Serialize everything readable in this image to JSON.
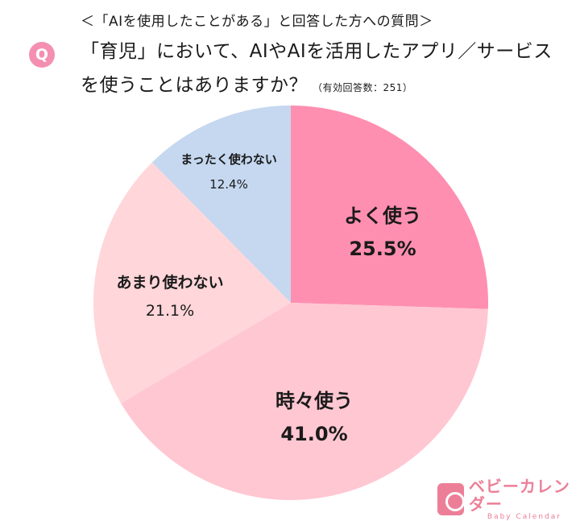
{
  "header": {
    "subtitle": "＜「AIを使用したことがある」と回答した方への質問＞",
    "q_badge": "Q",
    "question_line1": "「育児」において、AIやAIを活用したアプリ／サービス",
    "question_line2": "を使うことはありますか？",
    "sample_size": "（有効回答数：251）"
  },
  "chart_data": {
    "type": "pie",
    "title": "「育児」において、AIやAIを活用したアプリ／サービスを使うことはありますか？",
    "subtitle": "＜「AIを使用したことがある」と回答した方への質問＞",
    "n": 251,
    "start_angle": "12 o'clock, clockwise",
    "categories": [
      "よく使う",
      "時々使う",
      "あまり使わない",
      "まったく使わない"
    ],
    "values": [
      25.5,
      41.0,
      21.1,
      12.4
    ],
    "labels": [
      "25.5%",
      "41.0%",
      "21.1%",
      "12.4%"
    ],
    "colors": [
      "#ff8fb1",
      "#ffc7d2",
      "#ffd6d9",
      "#c5d8f0"
    ],
    "legend": "none (labels on slices)"
  },
  "labels": [
    {
      "name": "よく使う",
      "pct": "25.5%"
    },
    {
      "name": "時々使う",
      "pct": "41.0%"
    },
    {
      "name": "あまり使わない",
      "pct": "21.1%"
    },
    {
      "name": "まったく使わない",
      "pct": "12.4%"
    }
  ],
  "logo": {
    "jp": "ベビーカレンダー",
    "en": "Baby Calendar"
  }
}
